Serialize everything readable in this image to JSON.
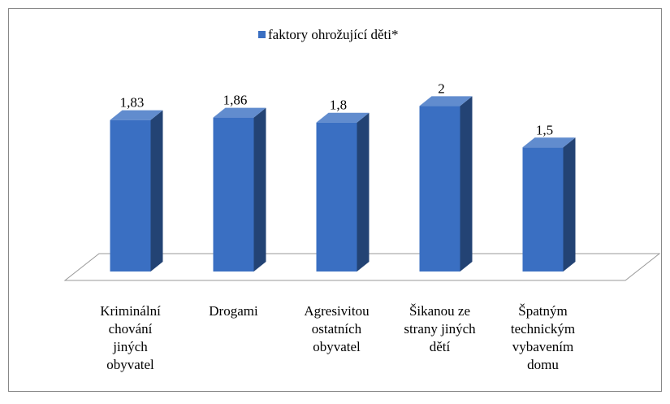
{
  "chart_data": {
    "type": "bar3d",
    "categories": [
      "Kriminální\nchování\njiných\nobyvatel",
      "Drogami",
      "Agresivitou\nostatních\nobyvatel",
      "Šikanou ze\nstrany jiných\ndětí",
      "Špatným\ntechnickým\nvybavením\ndomu"
    ],
    "series": [
      {
        "name": "faktory ohrožující děti*",
        "color": "#3a6fc2",
        "values": [
          1.83,
          1.86,
          1.8,
          2,
          1.5
        ],
        "value_labels": [
          "1,83",
          "1,86",
          "1,8",
          "2",
          "1,5"
        ]
      }
    ],
    "ylim": [
      0,
      2.2
    ],
    "legend": "top"
  }
}
